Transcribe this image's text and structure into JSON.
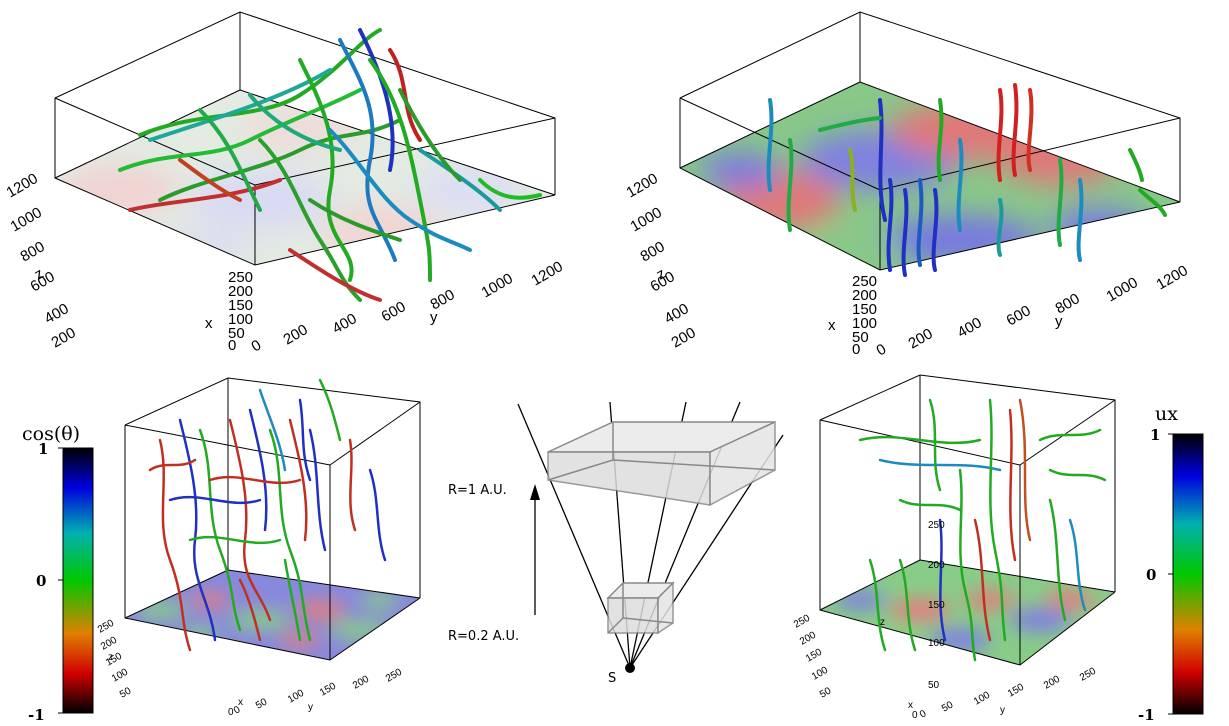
{
  "panels": {
    "top_left": {
      "z_ticks": [
        "1200",
        "1000",
        "800",
        "600",
        "400",
        "200"
      ],
      "y_ticks": [
        "0",
        "200",
        "400",
        "600",
        "800",
        "1000",
        "1200"
      ],
      "x_ticks": [
        "250",
        "200",
        "150",
        "100",
        "50",
        "0"
      ],
      "z_label": "z",
      "y_label": "y",
      "x_label": "x"
    },
    "top_right": {
      "z_ticks": [
        "1200",
        "1000",
        "800",
        "600",
        "400",
        "200"
      ],
      "y_ticks": [
        "0",
        "200",
        "400",
        "600",
        "800",
        "1000",
        "1200"
      ],
      "x_ticks": [
        "250",
        "200",
        "150",
        "100",
        "50",
        "0"
      ],
      "z_label": "z",
      "y_label": "y",
      "x_label": "x"
    },
    "bottom_left": {
      "z_ticks": [
        "250",
        "200",
        "150",
        "100",
        "50"
      ],
      "y_ticks": [
        "0",
        "50",
        "100",
        "150",
        "200",
        "250"
      ],
      "x_ticks": [
        "250",
        "200",
        "150",
        "100",
        "50",
        "0"
      ],
      "z_label": "z",
      "y_label": "y",
      "x_label": "x"
    },
    "bottom_right": {
      "z_ticks": [
        "250",
        "200",
        "150",
        "100",
        "50"
      ],
      "y_ticks": [
        "0",
        "50",
        "100",
        "150",
        "200",
        "250"
      ],
      "x_ticks": [
        "250",
        "200",
        "150",
        "100",
        "50",
        "0"
      ],
      "z_label": "z",
      "y_label": "y",
      "x_label": "x"
    }
  },
  "colorbar_left": {
    "label": "cos(θ)",
    "ticks": [
      "1",
      "0",
      "-1"
    ]
  },
  "colorbar_right": {
    "label": "ux",
    "ticks": [
      "1",
      "0",
      "-1"
    ]
  },
  "diagram": {
    "outer_label": "R=1 A.U.",
    "inner_label": "R=0.2 A.U.",
    "sun_label": "S"
  },
  "colors": {
    "colormap": [
      "#000000",
      "#e00000",
      "#e08000",
      "#00d000",
      "#00b0b0",
      "#0000e0",
      "#000000"
    ],
    "faint_slice": [
      "#f2d6d6",
      "#dde8dd",
      "#e0e0f4"
    ],
    "strong_slice": [
      "#ee8888",
      "#88cc88",
      "#8888ee"
    ]
  }
}
